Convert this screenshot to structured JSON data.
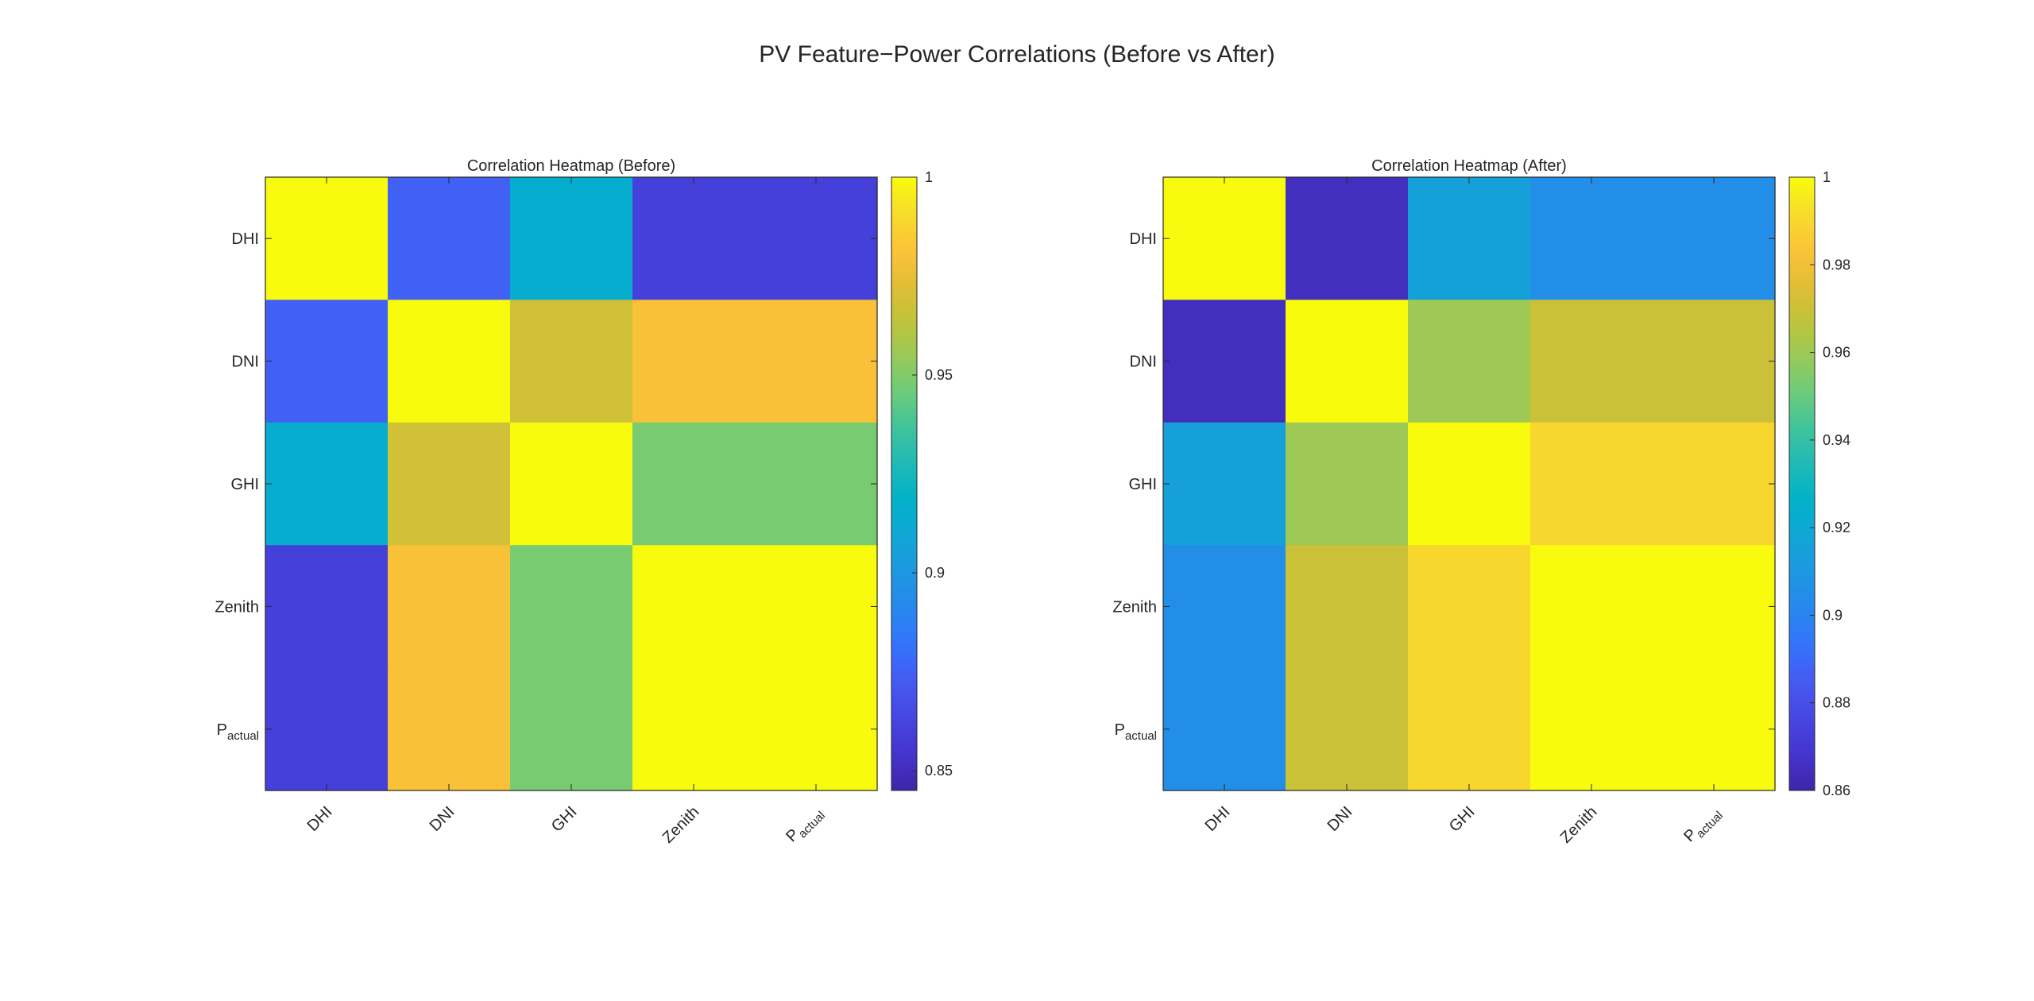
{
  "figure": {
    "title": "PV Feature−Power Correlations (Before vs After)"
  },
  "chart_data": [
    {
      "type": "heatmap",
      "title": "Correlation Heatmap (Before)",
      "row_labels": [
        "DHI",
        "DNI",
        "GHI",
        "Zenith",
        "P_actual"
      ],
      "col_labels": [
        "DHI",
        "DNI",
        "GHI",
        "Zenith",
        "P_actual"
      ],
      "values": [
        [
          1.0,
          0.875,
          0.915,
          0.86,
          0.86
        ],
        [
          0.875,
          1.0,
          0.968,
          0.98,
          0.98
        ],
        [
          0.915,
          0.968,
          1.0,
          0.948,
          0.948
        ],
        [
          0.86,
          0.98,
          0.948,
          1.0,
          1.0
        ],
        [
          0.86,
          0.98,
          0.948,
          1.0,
          1.0
        ]
      ],
      "colorbar": {
        "min": 0.845,
        "max": 1.0,
        "ticks": [
          0.85,
          0.9,
          0.95,
          1
        ],
        "tick_labels": [
          "0.85",
          "0.9",
          "0.95",
          "1"
        ]
      },
      "colormap": "parula"
    },
    {
      "type": "heatmap",
      "title": "Correlation Heatmap (After)",
      "row_labels": [
        "DHI",
        "DNI",
        "GHI",
        "Zenith",
        "P_actual"
      ],
      "col_labels": [
        "DHI",
        "DNI",
        "GHI",
        "Zenith",
        "P_actual"
      ],
      "values": [
        [
          1.0,
          0.865,
          0.915,
          0.905,
          0.905
        ],
        [
          0.865,
          1.0,
          0.96,
          0.97,
          0.97
        ],
        [
          0.915,
          0.96,
          1.0,
          0.99,
          0.99
        ],
        [
          0.905,
          0.97,
          0.99,
          1.0,
          1.0
        ],
        [
          0.905,
          0.97,
          0.99,
          1.0,
          1.0
        ]
      ],
      "colorbar": {
        "min": 0.86,
        "max": 1.0,
        "ticks": [
          0.86,
          0.88,
          0.9,
          0.92,
          0.94,
          0.96,
          0.98,
          1
        ],
        "tick_labels": [
          "0.86",
          "0.88",
          "0.9",
          "0.92",
          "0.94",
          "0.96",
          "0.98",
          "1"
        ]
      },
      "colormap": "parula"
    }
  ]
}
